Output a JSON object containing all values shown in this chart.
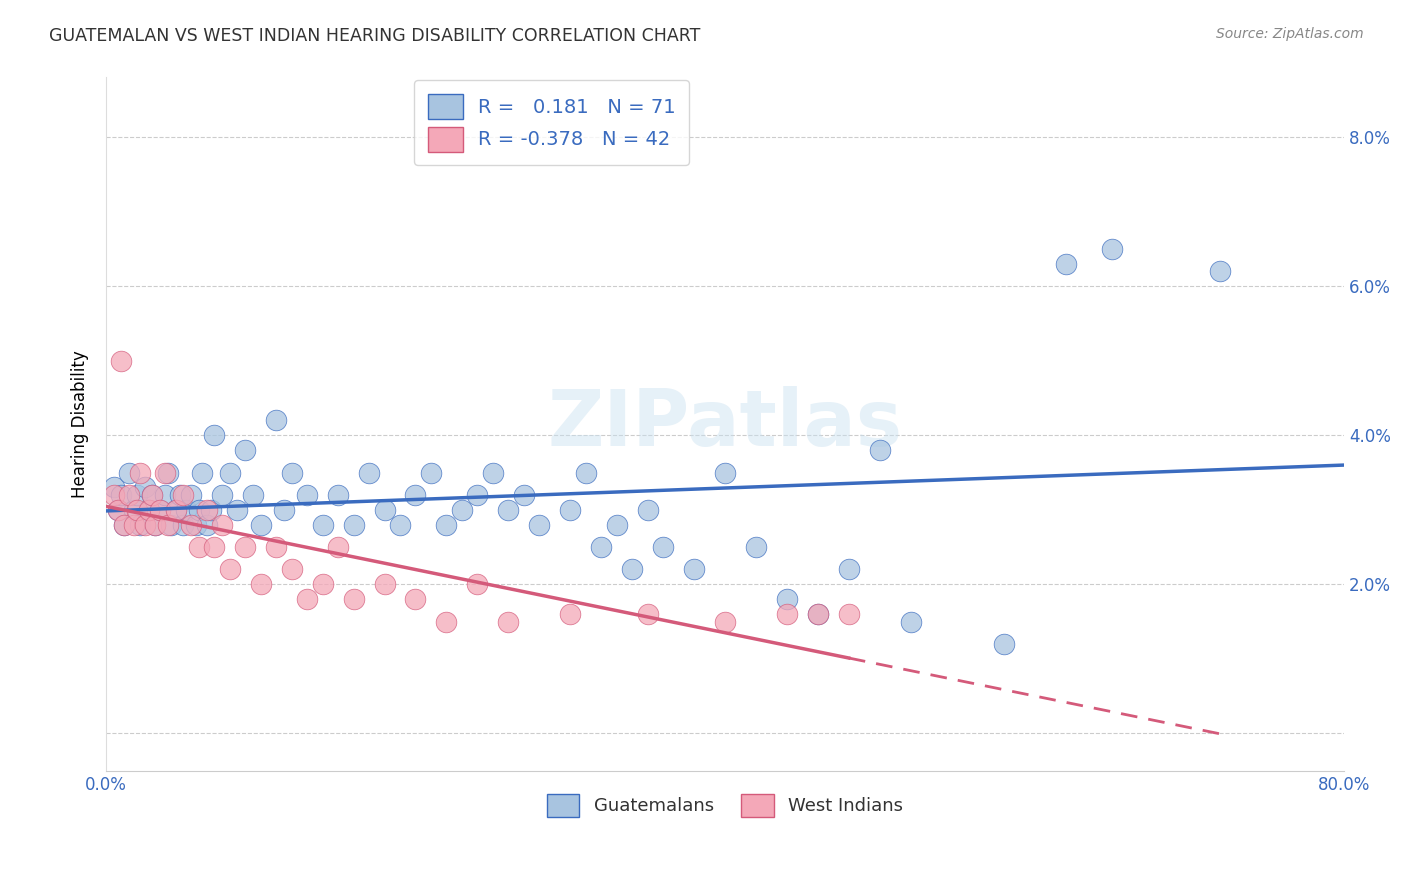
{
  "title": "GUATEMALAN VS WEST INDIAN HEARING DISABILITY CORRELATION CHART",
  "source": "Source: ZipAtlas.com",
  "ylabel": "Hearing Disability",
  "xlim": [
    0.0,
    0.8
  ],
  "ylim": [
    -0.005,
    0.088
  ],
  "background_color": "#ffffff",
  "grid_color": "#cccccc",
  "guatemalan_color": "#a8c4e0",
  "west_indian_color": "#f4a8b8",
  "guatemalan_line_color": "#3a6bbf",
  "west_indian_line_color": "#d45a7a",
  "legend_R_guatemalan": "0.181",
  "legend_N_guatemalan": "71",
  "legend_R_west_indian": "-0.378",
  "legend_N_west_indian": "42",
  "guatemalan_x": [
    0.005,
    0.008,
    0.01,
    0.012,
    0.015,
    0.018,
    0.02,
    0.022,
    0.025,
    0.028,
    0.03,
    0.032,
    0.035,
    0.038,
    0.04,
    0.042,
    0.045,
    0.048,
    0.05,
    0.052,
    0.055,
    0.058,
    0.06,
    0.062,
    0.065,
    0.068,
    0.07,
    0.075,
    0.08,
    0.085,
    0.09,
    0.095,
    0.1,
    0.11,
    0.115,
    0.12,
    0.13,
    0.14,
    0.15,
    0.16,
    0.17,
    0.18,
    0.19,
    0.2,
    0.21,
    0.22,
    0.23,
    0.24,
    0.25,
    0.26,
    0.27,
    0.28,
    0.3,
    0.31,
    0.32,
    0.33,
    0.34,
    0.35,
    0.36,
    0.38,
    0.4,
    0.42,
    0.44,
    0.46,
    0.48,
    0.5,
    0.52,
    0.58,
    0.62,
    0.65,
    0.72
  ],
  "guatemalan_y": [
    0.033,
    0.03,
    0.032,
    0.028,
    0.035,
    0.03,
    0.032,
    0.028,
    0.033,
    0.03,
    0.032,
    0.028,
    0.03,
    0.032,
    0.035,
    0.028,
    0.03,
    0.032,
    0.028,
    0.03,
    0.032,
    0.028,
    0.03,
    0.035,
    0.028,
    0.03,
    0.04,
    0.032,
    0.035,
    0.03,
    0.038,
    0.032,
    0.028,
    0.042,
    0.03,
    0.035,
    0.032,
    0.028,
    0.032,
    0.028,
    0.035,
    0.03,
    0.028,
    0.032,
    0.035,
    0.028,
    0.03,
    0.032,
    0.035,
    0.03,
    0.032,
    0.028,
    0.03,
    0.035,
    0.025,
    0.028,
    0.022,
    0.03,
    0.025,
    0.022,
    0.035,
    0.025,
    0.018,
    0.016,
    0.022,
    0.038,
    0.015,
    0.012,
    0.063,
    0.065,
    0.062
  ],
  "west_indian_x": [
    0.005,
    0.008,
    0.01,
    0.012,
    0.015,
    0.018,
    0.02,
    0.022,
    0.025,
    0.028,
    0.03,
    0.032,
    0.035,
    0.038,
    0.04,
    0.045,
    0.05,
    0.055,
    0.06,
    0.065,
    0.07,
    0.075,
    0.08,
    0.09,
    0.1,
    0.11,
    0.12,
    0.13,
    0.14,
    0.15,
    0.16,
    0.18,
    0.2,
    0.22,
    0.24,
    0.26,
    0.3,
    0.35,
    0.4,
    0.44,
    0.46,
    0.48
  ],
  "west_indian_y": [
    0.032,
    0.03,
    0.05,
    0.028,
    0.032,
    0.028,
    0.03,
    0.035,
    0.028,
    0.03,
    0.032,
    0.028,
    0.03,
    0.035,
    0.028,
    0.03,
    0.032,
    0.028,
    0.025,
    0.03,
    0.025,
    0.028,
    0.022,
    0.025,
    0.02,
    0.025,
    0.022,
    0.018,
    0.02,
    0.025,
    0.018,
    0.02,
    0.018,
    0.015,
    0.02,
    0.015,
    0.016,
    0.016,
    0.015,
    0.016,
    0.016,
    0.016
  ]
}
